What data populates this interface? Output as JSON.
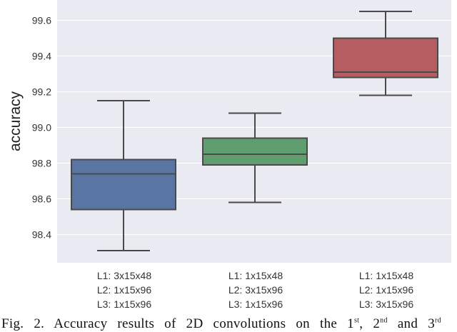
{
  "chart_data": {
    "type": "box",
    "title": "",
    "xlabel": "",
    "ylabel": "accuracy",
    "ylim": [
      98.24,
      99.71
    ],
    "yticks": [
      98.4,
      98.6,
      98.8,
      99.0,
      99.2,
      99.4,
      99.6
    ],
    "ytick_labels": [
      "98.4",
      "98.6",
      "98.8",
      "99.0",
      "99.2",
      "99.4",
      "99.6"
    ],
    "grid": true,
    "categories": [
      [
        "L1: 3x15x48",
        "L2: 1x15x96",
        "L3: 1x15x96"
      ],
      [
        "L1: 1x15x48",
        "L2: 3x15x96",
        "L3: 1x15x96"
      ],
      [
        "L1: 1x15x48",
        "L2: 1x15x96",
        "L3: 3x15x96"
      ]
    ],
    "boxes": [
      {
        "whisker_low": 98.31,
        "q1": 98.54,
        "median": 98.74,
        "q3": 98.82,
        "whisker_high": 99.15,
        "color": "#5875a4"
      },
      {
        "whisker_low": 98.58,
        "q1": 98.79,
        "median": 98.85,
        "q3": 98.94,
        "whisker_high": 99.08,
        "color": "#5f9e6e"
      },
      {
        "whisker_low": 99.18,
        "q1": 99.28,
        "median": 99.31,
        "q3": 99.5,
        "whisker_high": 99.65,
        "color": "#b55d60"
      }
    ]
  },
  "xtick_lines": [
    [
      "L1: 3x15x48",
      "L2: 1x15x96",
      "L3: 1x15x96"
    ],
    [
      "L1: 1x15x48",
      "L2: 3x15x96",
      "L3: 1x15x96"
    ],
    [
      "L1: 1x15x48",
      "L2: 1x15x96",
      "L3: 3x15x96"
    ]
  ],
  "caption": {
    "prefix": "Fig. 2. Accuracy results of 2D convolutions on the 1",
    "sup1": "st",
    "mid1": ", 2",
    "sup2": "nd",
    "mid2": " and 3",
    "sup3": "rd"
  },
  "colors": {
    "plot_bg": "#eaeaf2",
    "grid": "#ffffff",
    "edge": "#4a4a4a"
  }
}
